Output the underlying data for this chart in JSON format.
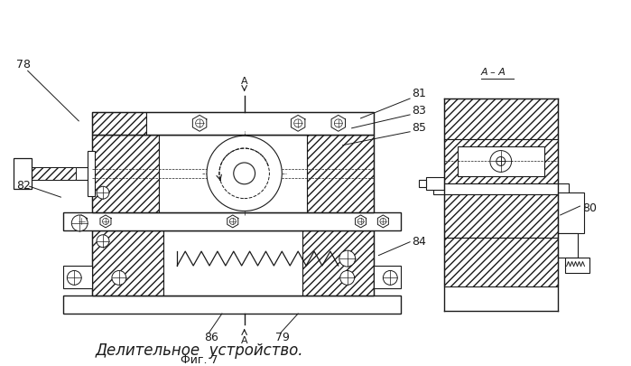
{
  "title": "Делительное  устройство.",
  "subtitle": "Фиг. 7",
  "bg_color": "#ffffff",
  "line_color": "#1a1a1a",
  "labels_left": [
    "78",
    "82"
  ],
  "labels_right": [
    "81",
    "83",
    "85",
    "84",
    "79",
    "86",
    "80"
  ]
}
